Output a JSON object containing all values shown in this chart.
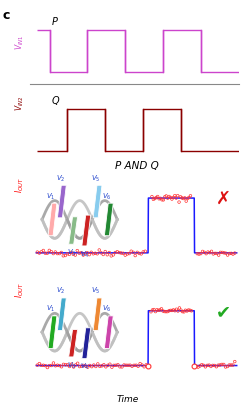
{
  "title_c": "c",
  "p_and_q_label": "P AND Q",
  "time_label": "Time",
  "signal_p_color": "#cc44cc",
  "signal_q_color": "#8B0000",
  "iout_line_color": "#1a1aff",
  "iout_dot_color": "#ff3333",
  "background": "#ffffff",
  "bar_colors_top": [
    "#ffaaaa",
    "#9966cc",
    "#88bb88",
    "#cc2222",
    "#88ccee",
    "#228833"
  ],
  "bar_colors_bot": [
    "#22aa22",
    "#44aacc",
    "#cc2222",
    "#222299",
    "#ee8833",
    "#cc44aa"
  ],
  "p_timing": [
    0,
    0.5,
    2.0,
    3.5,
    5.0,
    6.5,
    8.0
  ],
  "p_vals": [
    1,
    0,
    1,
    0,
    1,
    0
  ],
  "q_timing": [
    0,
    1.2,
    2.7,
    4.2,
    5.7,
    8.0
  ],
  "q_vals": [
    0,
    1,
    0,
    1,
    0
  ],
  "iout_step_up": 5.8,
  "iout_step_dn": 8.2,
  "iout_base": 0.08,
  "iout_high": 0.72
}
